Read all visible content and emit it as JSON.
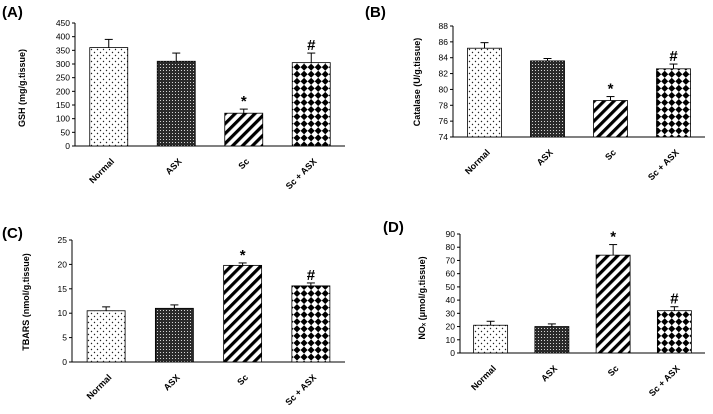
{
  "chart_data": [
    {
      "type": "bar",
      "panel": "(A)",
      "categories": [
        "Normal",
        "ASX",
        "Sc",
        "Sc + ASX"
      ],
      "values": [
        360,
        310,
        120,
        305
      ],
      "errors": [
        30,
        30,
        15,
        35
      ],
      "annotations": [
        "",
        "",
        "*",
        "#"
      ],
      "title": "",
      "xlabel": "",
      "ylabel": "GSH (mg/g.tissue)",
      "ylim": [
        0,
        450
      ],
      "yticks": [
        0,
        50,
        100,
        150,
        200,
        250,
        300,
        350,
        400,
        450
      ],
      "grid": false,
      "patterns": [
        "dots",
        "dense-dots",
        "hatch",
        "checker"
      ]
    },
    {
      "type": "bar",
      "panel": "(B)",
      "categories": [
        "Normal",
        "ASX",
        "Sc",
        "Sc + ASX"
      ],
      "values": [
        85.2,
        83.6,
        78.6,
        82.6
      ],
      "errors": [
        0.7,
        0.3,
        0.5,
        0.6
      ],
      "annotations": [
        "",
        "",
        "*",
        "#"
      ],
      "title": "",
      "xlabel": "",
      "ylabel": "Catalase (U/g.tissue)",
      "ylim": [
        74,
        88
      ],
      "yticks": [
        74,
        76,
        78,
        80,
        82,
        84,
        86,
        88
      ],
      "grid": false,
      "patterns": [
        "dots",
        "dense-dots",
        "hatch",
        "checker"
      ]
    },
    {
      "type": "bar",
      "panel": "(C)",
      "categories": [
        "Normal",
        "ASX",
        "Sc",
        "Sc + ASX"
      ],
      "values": [
        10.5,
        11,
        19.8,
        15.6
      ],
      "errors": [
        0.8,
        0.7,
        0.5,
        0.6
      ],
      "annotations": [
        "",
        "",
        "*",
        "#"
      ],
      "title": "",
      "xlabel": "",
      "ylabel": "TBARS (nmol/g.tissue)",
      "ylim": [
        0,
        25
      ],
      "yticks": [
        0,
        5,
        10,
        15,
        20,
        25
      ],
      "grid": false,
      "patterns": [
        "dots",
        "dense-dots",
        "hatch",
        "checker"
      ]
    },
    {
      "type": "bar",
      "panel": "(D)",
      "categories": [
        "Normal",
        "ASX",
        "Sc",
        "Sc + ASX"
      ],
      "values": [
        21,
        20,
        74,
        32
      ],
      "errors": [
        3,
        2,
        8,
        3
      ],
      "annotations": [
        "",
        "",
        "*",
        "#"
      ],
      "title": "",
      "xlabel": "",
      "ylabel": "NOₓ (μmol/g.tissue)",
      "ylim": [
        0,
        90
      ],
      "yticks": [
        0,
        10,
        20,
        30,
        40,
        50,
        60,
        70,
        80,
        90
      ],
      "grid": false,
      "patterns": [
        "dots",
        "dense-dots",
        "hatch",
        "checker"
      ]
    }
  ]
}
